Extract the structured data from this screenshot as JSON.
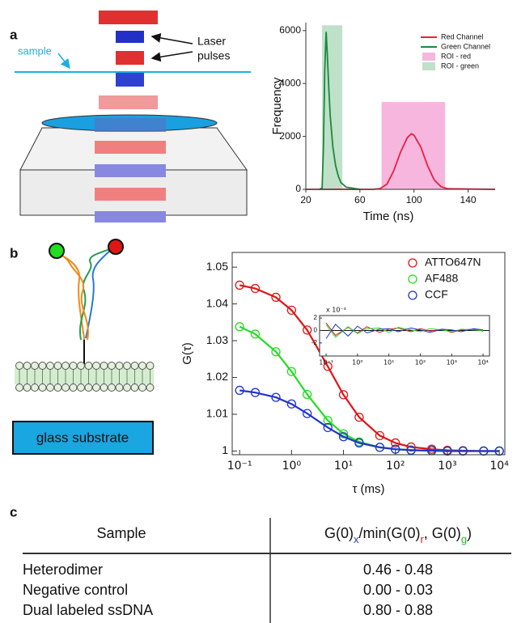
{
  "panels": [
    "a",
    "b",
    "c"
  ],
  "diagram": {
    "sample": "sample",
    "laser": [
      "Laser",
      "pulses"
    ],
    "substrate": "glass substrate"
  },
  "chart_data": [
    {
      "type": "line",
      "xlabel": "Time (ns)",
      "ylabel": "Frequency",
      "xlim": [
        20,
        160
      ],
      "xticks": [
        20,
        60,
        100,
        140
      ],
      "ylim": [
        0,
        6300
      ],
      "yticks": [
        0,
        2000,
        4000,
        6000
      ],
      "legend": "upper right",
      "regions": [
        {
          "name": "ROI - red",
          "color": "#f7b6dd",
          "x": [
            76,
            123
          ],
          "y": [
            0,
            3300
          ]
        },
        {
          "name": "ROI - green",
          "color": "#bfe0c9",
          "x": [
            32,
            47
          ],
          "y": [
            0,
            6200
          ]
        }
      ],
      "series": [
        {
          "name": "Red Channel",
          "color": "#e8213f",
          "x": [
            20,
            70,
            75,
            80,
            85,
            90,
            95,
            98,
            100,
            105,
            110,
            115,
            120,
            125,
            160
          ],
          "values": [
            0,
            0,
            30,
            200,
            700,
            1400,
            1950,
            2100,
            2050,
            1600,
            900,
            350,
            100,
            20,
            0
          ]
        },
        {
          "name": "Green Channel",
          "color": "#1a8a3a",
          "x": [
            30,
            32,
            33,
            34,
            35,
            36,
            37,
            38,
            40,
            42,
            44,
            46,
            50,
            60
          ],
          "values": [
            0,
            50,
            1500,
            4500,
            5950,
            5000,
            3800,
            2800,
            1600,
            900,
            500,
            250,
            80,
            0
          ]
        }
      ]
    },
    {
      "type": "scatter",
      "xlabel": "τ (ms)",
      "ylabel": "G(τ)",
      "log_x": true,
      "legend": "upper right",
      "xlim": [
        0.072,
        12800
      ],
      "xticks": [
        {
          "value": 0.1,
          "label": "10⁻¹"
        },
        {
          "value": 1,
          "label": "10⁰"
        },
        {
          "value": 10,
          "label": "10¹"
        },
        {
          "value": 100,
          "label": "10²"
        },
        {
          "value": 1000,
          "label": "10³"
        },
        {
          "value": 10000,
          "label": "10⁴"
        }
      ],
      "ylim": [
        0.999,
        1.054
      ],
      "yticks": [
        1,
        1.01,
        1.02,
        1.03,
        1.04,
        1.05
      ],
      "x": [
        0.1,
        0.2,
        0.5,
        1,
        2,
        5,
        10,
        20,
        50,
        100,
        200,
        500,
        1000,
        2000,
        5000,
        10000
      ],
      "series": [
        {
          "name": "ATTO647N",
          "color": "#e01515",
          "values": [
            1.0451,
            1.0442,
            1.0418,
            1.0383,
            1.0329,
            1.023,
            1.0153,
            1.0092,
            1.0042,
            1.0022,
            1.0011,
            1.0005,
            1.0002,
            1.0001,
            1.0,
            1.0
          ]
        },
        {
          "name": "AF488",
          "color": "#22dd22",
          "values": [
            1.0338,
            1.0318,
            1.027,
            1.0216,
            1.0154,
            1.0083,
            1.0047,
            1.0025,
            1.001,
            1.0005,
            1.0003,
            1.0001,
            1.0,
            1.0,
            1.0,
            1.0
          ]
        },
        {
          "name": "CCF",
          "color": "#2233cc",
          "values": [
            1.0165,
            1.0159,
            1.0146,
            1.0128,
            1.0102,
            1.0064,
            1.0039,
            1.0022,
            1.001,
            1.0005,
            1.0002,
            1.0001,
            1.0,
            1.0,
            1.0,
            1.0
          ]
        }
      ],
      "inset": {
        "type": "line",
        "log_x": true,
        "xlim": [
          0.062,
          16000
        ],
        "xticks": [
          {
            "value": 0.1,
            "label": "10⁻¹"
          },
          {
            "value": 1,
            "label": "10⁰"
          },
          {
            "value": 10,
            "label": "10¹"
          },
          {
            "value": 100,
            "label": "10²"
          },
          {
            "value": 1000,
            "label": "10³"
          },
          {
            "value": 10000,
            "label": "10⁴"
          }
        ],
        "ylim": [
          -0.0041,
          0.0024
        ],
        "yticks": [
          {
            "value": -0.002,
            "label": "-2"
          },
          0,
          {
            "value": 0.002,
            "label": "2"
          }
        ],
        "scale_label": "x 10⁻³",
        "series": [
          {
            "color": "#e01515",
            "values": [
              0.0012,
              -0.0008,
              0.0005,
              -0.0004,
              0.0006,
              -0.0003,
              0.0002,
              0.0004,
              -0.0002,
              0.0003,
              -0.0001,
              0.0002,
              -0.0003,
              0.0001,
              0.0002,
              -0.0001
            ]
          },
          {
            "color": "#22dd22",
            "values": [
              0.0009,
              -0.0011,
              0.0006,
              -0.0005,
              0.0003,
              0.0004,
              -0.0003,
              0.0005,
              0.0001,
              -0.0002,
              0.0003,
              0.0001,
              -0.0002,
              0.0002,
              0.0001,
              0
            ]
          },
          {
            "color": "#2233cc",
            "values": [
              -0.0013,
              0.001,
              -0.0009,
              0.0007,
              -0.0004,
              0.0002,
              0.0003,
              -0.0002,
              0.0004,
              0.0001,
              -0.0003,
              0.0002,
              0.0001,
              -0.0002,
              0.0003,
              0.0001
            ]
          }
        ]
      }
    }
  ],
  "table": {
    "header": [
      "Sample",
      [
        {
          "text": "G(0)"
        },
        {
          "text": "x",
          "color": "#2233cc",
          "sub": true
        },
        {
          "text": "/min(G(0)"
        },
        {
          "text": "r",
          "color": "#e01515",
          "sub": true
        },
        {
          "text": ", G(0)"
        },
        {
          "text": "g",
          "color": "#22bb22",
          "sub": true
        },
        {
          "text": ")"
        }
      ]
    ],
    "rows": [
      [
        "Heterodimer",
        "0.46 - 0.48"
      ],
      [
        "Negative control",
        "0.00 - 0.03"
      ],
      [
        "Dual labeled ssDNA",
        "0.80 - 0.88"
      ]
    ]
  }
}
